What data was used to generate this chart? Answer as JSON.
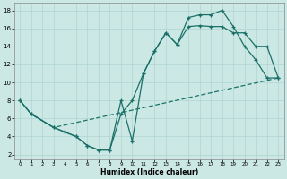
{
  "xlabel": "Humidex (Indice chaleur)",
  "bg_color": "#cce8e4",
  "grid_color": "#b0d4d0",
  "line_color": "#1a7068",
  "xlim": [
    -0.5,
    23.5
  ],
  "ylim": [
    1.5,
    18.8
  ],
  "xticks": [
    0,
    1,
    2,
    3,
    4,
    5,
    6,
    7,
    8,
    9,
    10,
    11,
    12,
    13,
    14,
    15,
    16,
    17,
    18,
    19,
    20,
    21,
    22,
    23
  ],
  "yticks": [
    2,
    4,
    6,
    8,
    10,
    12,
    14,
    16,
    18
  ],
  "line1_x": [
    0,
    1,
    3,
    4,
    5,
    6,
    7,
    8,
    9,
    10,
    11,
    12,
    13,
    14,
    15,
    16,
    17,
    18,
    19,
    20,
    21,
    22,
    23
  ],
  "line1_y": [
    8,
    6.5,
    5,
    4.5,
    4,
    3,
    2.5,
    2.5,
    8,
    3.5,
    11,
    13.5,
    15.5,
    14.2,
    17.2,
    17.5,
    17.5,
    18,
    16.2,
    14,
    12.5,
    10.5,
    10.5
  ],
  "line2_x": [
    0,
    1,
    3,
    4,
    5,
    6,
    7,
    8,
    9,
    10,
    11,
    12,
    13,
    14,
    15,
    16,
    17,
    18,
    19,
    20,
    21,
    22,
    23
  ],
  "line2_y": [
    8,
    6.5,
    5,
    4.5,
    4,
    3,
    2.5,
    2.5,
    6.5,
    8,
    11,
    13.5,
    15.5,
    14.2,
    16.2,
    16.3,
    16.2,
    16.2,
    15.5,
    15.5,
    14.0,
    14.0,
    10.5
  ],
  "line3_x": [
    0,
    1,
    3,
    23
  ],
  "line3_y": [
    8,
    6.5,
    5,
    10.5
  ]
}
